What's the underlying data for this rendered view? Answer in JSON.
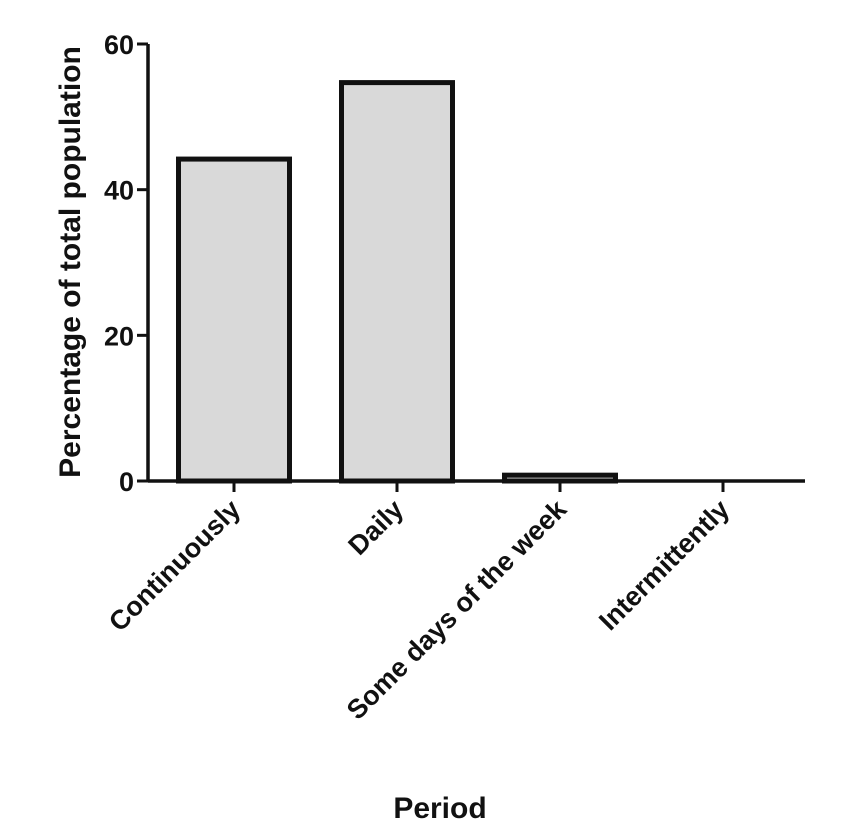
{
  "chart_data": {
    "type": "bar",
    "categories": [
      "Continuously",
      "Daily",
      "Some days of the week",
      "Intermittently"
    ],
    "values": [
      44.2,
      54.7,
      0.8,
      0
    ],
    "xlabel": "Period",
    "ylabel": "Percentage of total population",
    "ylim": [
      0,
      60
    ],
    "yticks": [
      0,
      20,
      40,
      60
    ],
    "grid": false,
    "legend": "none",
    "colors": {
      "bar_fill": "#d9d9d9",
      "stroke": "#111111"
    }
  }
}
